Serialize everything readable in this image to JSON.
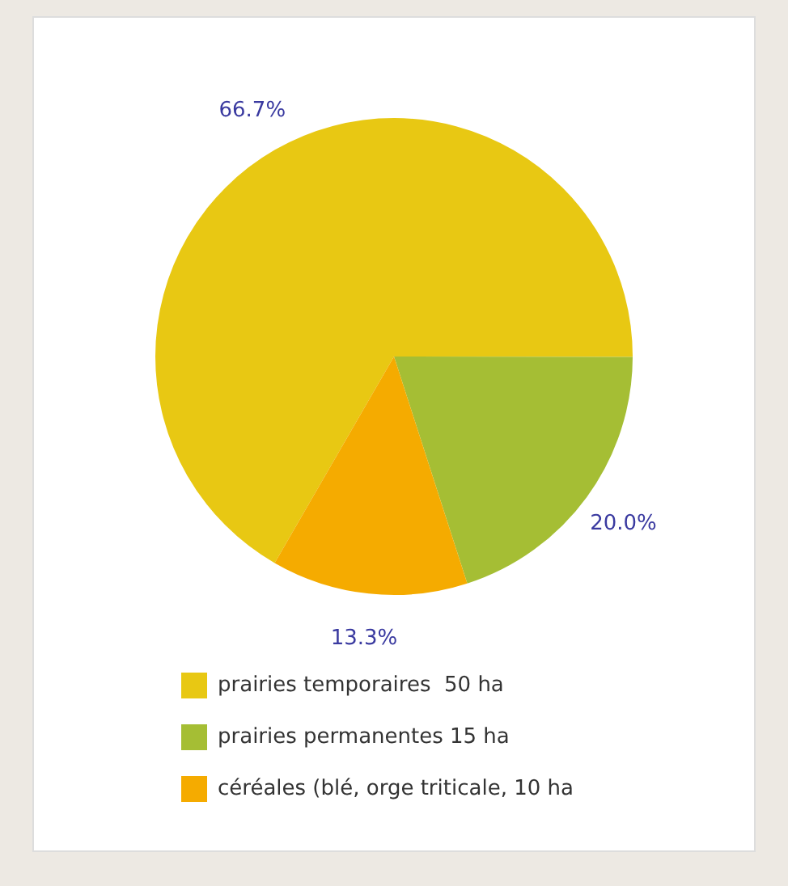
{
  "chart_data": {
    "type": "pie",
    "categories": [
      "prairies temporaires  50 ha",
      "prairies permanentes 15 ha",
      "céréales (blé, orge triticale, 10 ha"
    ],
    "values": [
      66.7,
      20.0,
      13.3
    ],
    "colors": [
      "#e8c813",
      "#a5be34",
      "#f5ab00"
    ],
    "value_labels": [
      "66.7%",
      "20.0%",
      "13.3%"
    ],
    "legend": "bottom"
  }
}
